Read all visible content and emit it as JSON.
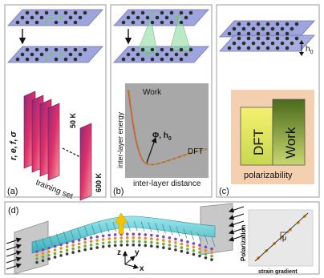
{
  "panels": {
    "a": {
      "tag": "(a)",
      "quantities": [
        "r,",
        "e,",
        "f,",
        "σ"
      ],
      "temp_high": "50 K",
      "temp_low": "600 K",
      "caption": "training set"
    },
    "b": {
      "tag": "(b)",
      "ylabel": "inter-layer energy",
      "xlabel": "inter-layer distance",
      "legend_work": "Work",
      "legend_dft": "DFT",
      "params": "Φ, h",
      "params_sub": "0"
    },
    "c": {
      "tag": "(c)",
      "gap": "h",
      "gap_sub": "0",
      "bar_dft": "DFT",
      "bar_work": "Work",
      "caption": "polarizability"
    },
    "d": {
      "tag": "(d)",
      "axis_z": "z",
      "axis_y": "y",
      "axis_x": "x",
      "inset_ylabel": "Polarization",
      "inset_xlabel": "strain gradient",
      "inset_slope": "μ"
    }
  },
  "colors": {
    "sheet": "#9da5dc",
    "sheet_edge": "#6a74b8",
    "atom_dark": "#2c2c2c",
    "atom_green": "#7bc27b",
    "work_curve": "#e0453a",
    "dft_curve": "#8ab23a",
    "plot_bg": "#a8a8a8",
    "panel_c_bg": "#f4d0b0",
    "ribbon": "#6ed0d8",
    "arrow_yellow": "#f5c400",
    "inset_point": "#f0a020"
  }
}
